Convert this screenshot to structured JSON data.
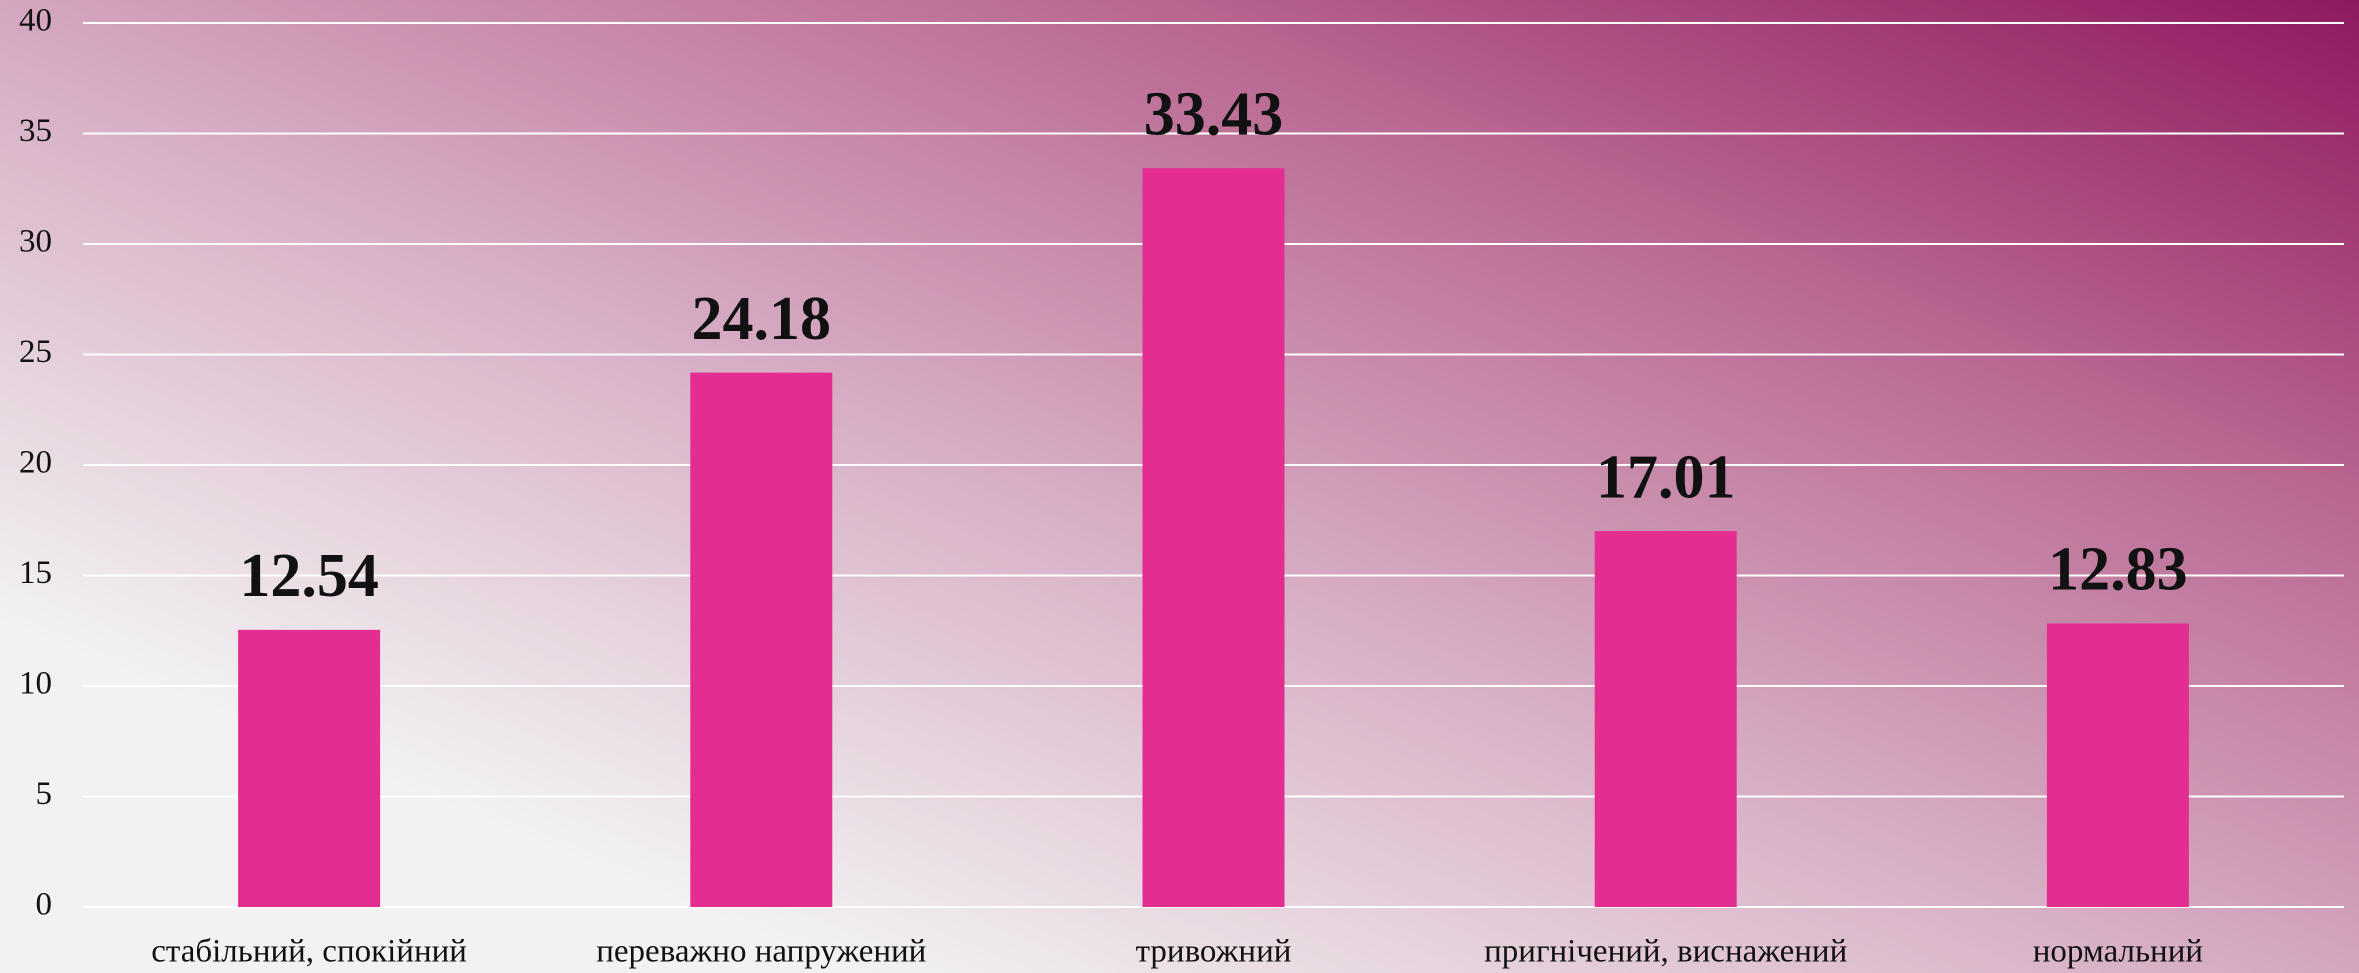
{
  "chart_data": {
    "type": "bar",
    "categories": [
      "стабільний, спокійний",
      "переважно напружений",
      "тривожний",
      "пригнічений, виснажений",
      "нормальний"
    ],
    "values": [
      12.54,
      24.18,
      33.43,
      17.01,
      12.83
    ],
    "color": "#e32d91",
    "ylim": [
      0,
      40
    ],
    "yticks": [
      0,
      5,
      10,
      15,
      20,
      25,
      30,
      35,
      40
    ],
    "grid": true
  }
}
